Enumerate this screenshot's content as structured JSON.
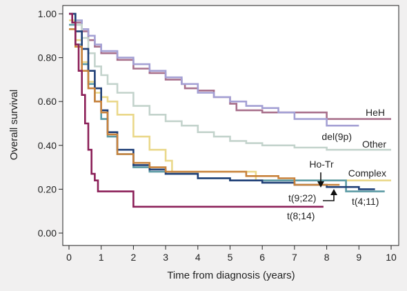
{
  "chart_data": {
    "type": "line",
    "title": "",
    "xlabel": "Time from diagnosis (years)",
    "ylabel": "Overall survival",
    "xlim": [
      0,
      10
    ],
    "ylim": [
      0,
      1.0
    ],
    "x_ticks": [
      "0",
      "1",
      "2",
      "3",
      "4",
      "5",
      "6",
      "7",
      "8",
      "9",
      "10"
    ],
    "y_ticks": [
      "0.00",
      "0.20",
      "0.40",
      "0.60",
      "0.80",
      "1.00"
    ],
    "grid": false,
    "legend": "none (series labelled directly on the plot)",
    "series": [
      {
        "name": "HeH",
        "color": "#a8708c",
        "points": [
          [
            0,
            1.0
          ],
          [
            0.2,
            0.96
          ],
          [
            0.4,
            0.92
          ],
          [
            0.6,
            0.88
          ],
          [
            0.8,
            0.85
          ],
          [
            1.0,
            0.82
          ],
          [
            1.5,
            0.79
          ],
          [
            2.0,
            0.75
          ],
          [
            2.5,
            0.73
          ],
          [
            3.0,
            0.7
          ],
          [
            3.5,
            0.68
          ],
          [
            3.6,
            0.66
          ],
          [
            4.0,
            0.65
          ],
          [
            4.5,
            0.62
          ],
          [
            5.0,
            0.59
          ],
          [
            5.2,
            0.56
          ],
          [
            6.0,
            0.55
          ],
          [
            7.5,
            0.55
          ],
          [
            8.0,
            0.52
          ],
          [
            10.0,
            0.52
          ]
        ]
      },
      {
        "name": "del(9p)",
        "color": "#a4a0d4",
        "points": [
          [
            0,
            1.0
          ],
          [
            0.2,
            0.97
          ],
          [
            0.4,
            0.93
          ],
          [
            0.6,
            0.9
          ],
          [
            0.8,
            0.86
          ],
          [
            1.0,
            0.83
          ],
          [
            1.5,
            0.8
          ],
          [
            2.0,
            0.77
          ],
          [
            2.5,
            0.74
          ],
          [
            3.0,
            0.71
          ],
          [
            3.5,
            0.68
          ],
          [
            4.0,
            0.64
          ],
          [
            4.5,
            0.62
          ],
          [
            5.0,
            0.6
          ],
          [
            5.5,
            0.58
          ],
          [
            6.0,
            0.57
          ],
          [
            6.5,
            0.55
          ],
          [
            7.0,
            0.52
          ],
          [
            8.0,
            0.49
          ],
          [
            9.0,
            0.49
          ]
        ]
      },
      {
        "name": "Other",
        "color": "#c3d3cc",
        "points": [
          [
            0,
            1.0
          ],
          [
            0.2,
            0.95
          ],
          [
            0.4,
            0.89
          ],
          [
            0.6,
            0.82
          ],
          [
            0.8,
            0.76
          ],
          [
            1.0,
            0.72
          ],
          [
            1.2,
            0.68
          ],
          [
            1.5,
            0.64
          ],
          [
            2.0,
            0.58
          ],
          [
            2.5,
            0.54
          ],
          [
            3.0,
            0.51
          ],
          [
            3.5,
            0.49
          ],
          [
            4.0,
            0.46
          ],
          [
            4.5,
            0.44
          ],
          [
            5.0,
            0.42
          ],
          [
            5.5,
            0.41
          ],
          [
            6.0,
            0.4
          ],
          [
            7.0,
            0.39
          ],
          [
            8.0,
            0.38
          ],
          [
            9.0,
            0.38
          ],
          [
            10.0,
            0.38
          ]
        ]
      },
      {
        "name": "Complex",
        "color": "#ead88a",
        "points": [
          [
            0,
            0.97
          ],
          [
            0.2,
            0.88
          ],
          [
            0.4,
            0.78
          ],
          [
            0.6,
            0.69
          ],
          [
            0.8,
            0.64
          ],
          [
            1.0,
            0.62
          ],
          [
            1.2,
            0.6
          ],
          [
            1.5,
            0.54
          ],
          [
            2.0,
            0.44
          ],
          [
            2.5,
            0.38
          ],
          [
            3.0,
            0.33
          ],
          [
            3.2,
            0.28
          ],
          [
            4.0,
            0.28
          ],
          [
            5.0,
            0.28
          ],
          [
            5.8,
            0.28
          ],
          [
            5.8,
            0.24
          ],
          [
            7.0,
            0.24
          ],
          [
            8.5,
            0.24
          ],
          [
            10.0,
            0.24
          ]
        ]
      },
      {
        "name": "t(4;11)",
        "color": "#5b9aa4",
        "points": [
          [
            0,
            0.95
          ],
          [
            0.2,
            0.86
          ],
          [
            0.4,
            0.77
          ],
          [
            0.6,
            0.68
          ],
          [
            0.8,
            0.6
          ],
          [
            1.0,
            0.52
          ],
          [
            1.2,
            0.44
          ],
          [
            1.5,
            0.36
          ],
          [
            2.0,
            0.3
          ],
          [
            2.5,
            0.28
          ],
          [
            3.0,
            0.27
          ],
          [
            4.0,
            0.25
          ],
          [
            5.0,
            0.24
          ],
          [
            6.0,
            0.24
          ],
          [
            7.0,
            0.24
          ],
          [
            8.5,
            0.24
          ],
          [
            8.6,
            0.19
          ],
          [
            9.8,
            0.19
          ]
        ]
      },
      {
        "name": "Ho-Tr",
        "color": "#1f3f77",
        "points": [
          [
            0,
            1.0
          ],
          [
            0.2,
            0.92
          ],
          [
            0.4,
            0.84
          ],
          [
            0.6,
            0.74
          ],
          [
            0.8,
            0.66
          ],
          [
            1.0,
            0.56
          ],
          [
            1.2,
            0.46
          ],
          [
            1.5,
            0.38
          ],
          [
            2.0,
            0.31
          ],
          [
            2.5,
            0.29
          ],
          [
            3.0,
            0.27
          ],
          [
            4.0,
            0.25
          ],
          [
            5.0,
            0.24
          ],
          [
            6.0,
            0.23
          ],
          [
            7.0,
            0.22
          ],
          [
            8.0,
            0.21
          ],
          [
            9.0,
            0.2
          ],
          [
            9.5,
            0.2
          ]
        ]
      },
      {
        "name": "t(9;22)",
        "color": "#c8823b",
        "points": [
          [
            0,
            0.93
          ],
          [
            0.2,
            0.85
          ],
          [
            0.4,
            0.74
          ],
          [
            0.6,
            0.66
          ],
          [
            0.8,
            0.6
          ],
          [
            1.0,
            0.55
          ],
          [
            1.2,
            0.45
          ],
          [
            1.5,
            0.36
          ],
          [
            2.0,
            0.32
          ],
          [
            2.5,
            0.3
          ],
          [
            3.0,
            0.28
          ],
          [
            4.0,
            0.28
          ],
          [
            5.0,
            0.28
          ],
          [
            5.5,
            0.26
          ],
          [
            6.0,
            0.26
          ],
          [
            6.5,
            0.25
          ],
          [
            7.0,
            0.22
          ],
          [
            8.0,
            0.22
          ],
          [
            8.4,
            0.22
          ]
        ]
      },
      {
        "name": "t(8;14)",
        "color": "#8b1f58",
        "points": [
          [
            0,
            1.0
          ],
          [
            0.1,
            0.96
          ],
          [
            0.2,
            0.86
          ],
          [
            0.3,
            0.74
          ],
          [
            0.4,
            0.63
          ],
          [
            0.5,
            0.5
          ],
          [
            0.6,
            0.38
          ],
          [
            0.7,
            0.27
          ],
          [
            0.8,
            0.24
          ],
          [
            0.9,
            0.19
          ],
          [
            1.5,
            0.19
          ],
          [
            1.9,
            0.19
          ],
          [
            2.0,
            0.12
          ],
          [
            3.0,
            0.12
          ],
          [
            5.0,
            0.12
          ],
          [
            7.0,
            0.12
          ],
          [
            7.9,
            0.12
          ]
        ]
      }
    ],
    "annotations": [
      {
        "text": "HeH",
        "color": "#222222"
      },
      {
        "text": "del(9p)",
        "color": "#222222"
      },
      {
        "text": "Other",
        "color": "#222222"
      },
      {
        "text": "Ho-Tr",
        "color": "#222222"
      },
      {
        "text": "Complex",
        "color": "#222222"
      },
      {
        "text": "t(9;22)",
        "color": "#222222"
      },
      {
        "text": "t(4;11)",
        "color": "#222222"
      },
      {
        "text": "t(8;14)",
        "color": "#222222"
      }
    ],
    "background_color": "#f1f0f0",
    "plot_background_color": "#ffffff"
  }
}
